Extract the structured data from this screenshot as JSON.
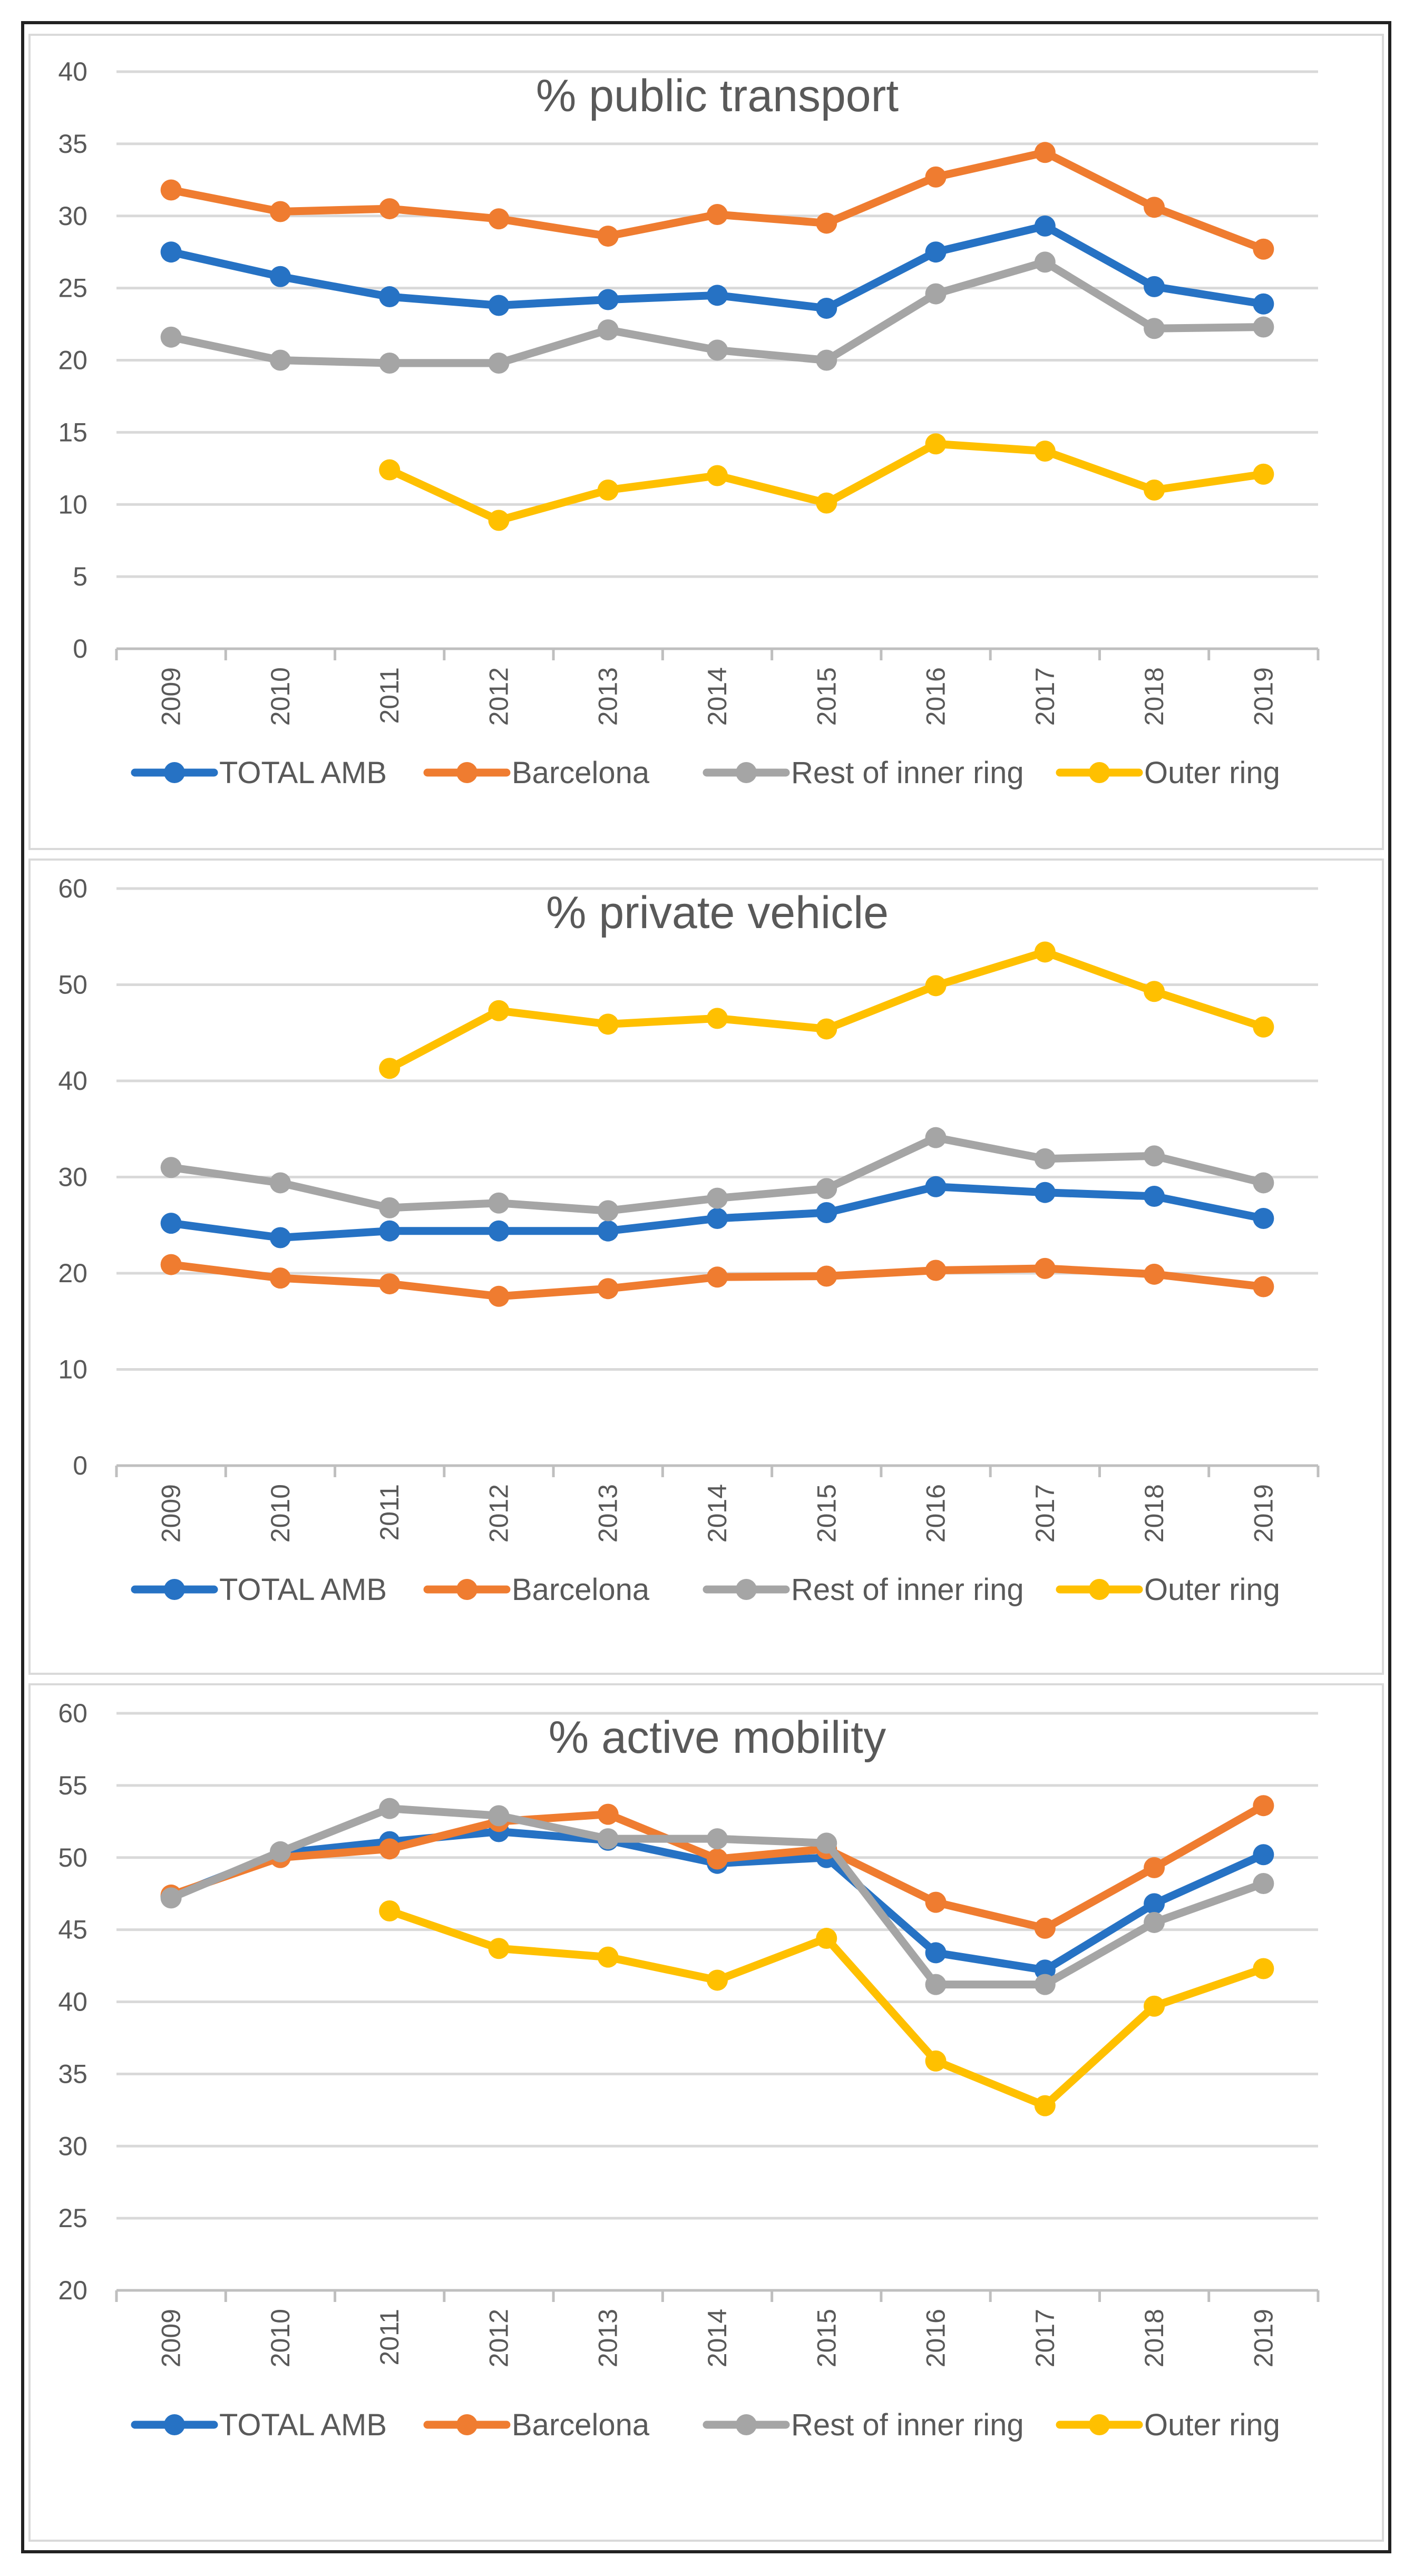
{
  "chart_data": [
    {
      "type": "line",
      "title": "% public transport",
      "xlabel": "",
      "ylabel": "",
      "categories": [
        "2009",
        "2010",
        "2011",
        "2012",
        "2013",
        "2014",
        "2015",
        "2016",
        "2017",
        "2018",
        "2019"
      ],
      "yticks": [
        "0",
        "5",
        "10",
        "15",
        "20",
        "25",
        "30",
        "35",
        "40"
      ],
      "ylim": [
        0,
        40
      ],
      "grid": true,
      "legend": "bottom",
      "series": [
        {
          "name": "TOTAL AMB",
          "color": "#2672c4",
          "values": [
            27.5,
            25.8,
            24.4,
            23.8,
            24.2,
            24.5,
            23.6,
            27.5,
            29.3,
            25.1,
            23.9
          ]
        },
        {
          "name": "Barcelona",
          "color": "#ef7c30",
          "values": [
            31.8,
            30.3,
            30.5,
            29.8,
            28.6,
            30.1,
            29.5,
            32.7,
            34.4,
            30.6,
            27.7
          ]
        },
        {
          "name": "Rest of inner ring",
          "color": "#a5a5a5",
          "values": [
            21.6,
            20.0,
            19.8,
            19.8,
            22.1,
            20.7,
            20.0,
            24.6,
            26.8,
            22.2,
            22.3
          ]
        },
        {
          "name": "Outer ring",
          "color": "#ffc000",
          "values": [
            null,
            null,
            12.4,
            8.9,
            11.0,
            12.0,
            10.1,
            14.2,
            13.7,
            11.0,
            12.1
          ]
        }
      ]
    },
    {
      "type": "line",
      "title": "% private vehicle",
      "xlabel": "",
      "ylabel": "",
      "categories": [
        "2009",
        "2010",
        "2011",
        "2012",
        "2013",
        "2014",
        "2015",
        "2016",
        "2017",
        "2018",
        "2019"
      ],
      "yticks": [
        "0",
        "10",
        "20",
        "30",
        "40",
        "50",
        "60"
      ],
      "ylim": [
        0,
        60
      ],
      "grid": true,
      "legend": "bottom",
      "series": [
        {
          "name": "TOTAL AMB",
          "color": "#2672c4",
          "values": [
            25.2,
            23.7,
            24.4,
            24.4,
            24.4,
            25.7,
            26.3,
            29.0,
            28.4,
            28.0,
            25.7
          ]
        },
        {
          "name": "Barcelona",
          "color": "#ef7c30",
          "values": [
            20.9,
            19.5,
            18.9,
            17.6,
            18.4,
            19.6,
            19.7,
            20.3,
            20.5,
            19.9,
            18.6
          ]
        },
        {
          "name": "Rest of inner ring",
          "color": "#a5a5a5",
          "values": [
            31.0,
            29.4,
            26.8,
            27.3,
            26.5,
            27.8,
            28.8,
            34.1,
            31.9,
            32.2,
            29.4
          ]
        },
        {
          "name": "Outer ring",
          "color": "#ffc000",
          "values": [
            null,
            null,
            41.3,
            47.3,
            45.9,
            46.5,
            45.4,
            49.9,
            53.4,
            49.3,
            45.6
          ]
        }
      ]
    },
    {
      "type": "line",
      "title": "% active mobility",
      "xlabel": "",
      "ylabel": "",
      "categories": [
        "2009",
        "2010",
        "2011",
        "2012",
        "2013",
        "2014",
        "2015",
        "2016",
        "2017",
        "2018",
        "2019"
      ],
      "yticks": [
        "20",
        "25",
        "30",
        "35",
        "40",
        "45",
        "50",
        "55",
        "60"
      ],
      "ylim": [
        20,
        60
      ],
      "grid": true,
      "legend": "bottom",
      "series": [
        {
          "name": "TOTAL AMB",
          "color": "#2672c4",
          "values": [
            47.3,
            50.3,
            51.1,
            51.8,
            51.2,
            49.6,
            50.0,
            43.4,
            42.2,
            46.8,
            50.2
          ]
        },
        {
          "name": "Barcelona",
          "color": "#ef7c30",
          "values": [
            47.4,
            50.0,
            50.6,
            52.5,
            53.0,
            49.9,
            50.6,
            46.9,
            45.1,
            49.3,
            53.6
          ]
        },
        {
          "name": "Rest of inner ring",
          "color": "#a5a5a5",
          "values": [
            47.2,
            50.4,
            53.4,
            52.9,
            51.3,
            51.3,
            51.0,
            41.2,
            41.2,
            45.5,
            48.2
          ]
        },
        {
          "name": "Outer ring",
          "color": "#ffc000",
          "values": [
            null,
            null,
            46.3,
            43.7,
            43.1,
            41.5,
            44.4,
            35.9,
            32.8,
            39.7,
            42.3
          ]
        }
      ]
    }
  ]
}
